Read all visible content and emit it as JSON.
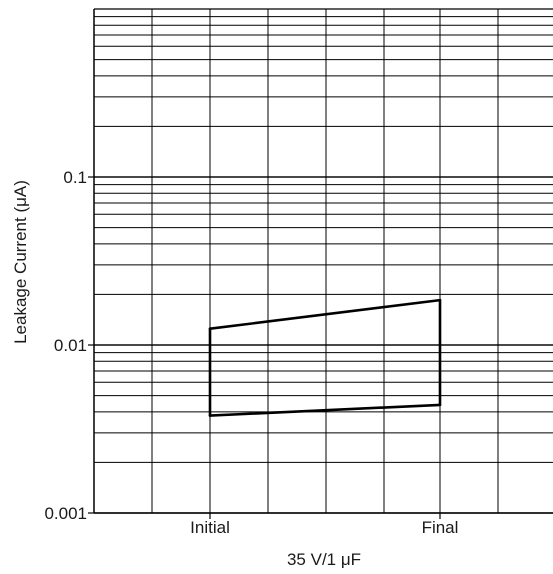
{
  "chart_data": {
    "type": "line",
    "title": "",
    "xlabel": "35 V/1 μF",
    "ylabel": "Leakage Current (μA)",
    "yscale": "log",
    "ylim": [
      0.001,
      1
    ],
    "grid": true,
    "categories": [
      "Initial",
      "Final"
    ],
    "y_tick_labels": [
      "0.1",
      "0.01",
      "0.001"
    ],
    "y_tick_values": [
      0.1,
      0.01,
      0.001
    ],
    "series": [
      {
        "values": [
          0.0125,
          0.0185
        ]
      },
      {
        "values": [
          0.0038,
          0.0044
        ]
      }
    ],
    "colors": {
      "line": "#000000",
      "grid": "#000000"
    }
  }
}
